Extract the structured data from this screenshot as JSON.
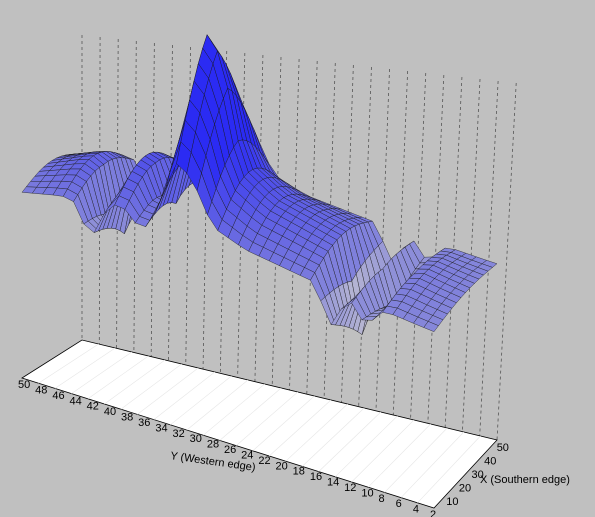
{
  "chart_data": {
    "type": "surface",
    "title": "",
    "xlabel": "X (Southern edge)",
    "ylabel": "Y (Western edge)",
    "zlabel": "",
    "x_ticks": [
      "10",
      "20",
      "30",
      "40",
      "50"
    ],
    "y_ticks": [
      "50",
      "48",
      "46",
      "44",
      "42",
      "40",
      "38",
      "36",
      "34",
      "32",
      "30",
      "28",
      "26",
      "24",
      "22",
      "20",
      "18",
      "16",
      "14",
      "12",
      "10",
      "8",
      "6",
      "4",
      "2"
    ],
    "grid": "vertical dotted drop lines",
    "colormap": [
      "#fffbc8",
      "#8e8fd8",
      "#2b2bf3"
    ],
    "surface_profile": {
      "description_y": [
        50,
        46,
        42,
        38,
        36,
        32,
        28,
        24,
        20,
        16,
        12,
        8,
        4,
        2
      ],
      "ridge_height": [
        0.3,
        0.45,
        0.55,
        0.65,
        0.85,
        1.0,
        0.8,
        0.55,
        0.45,
        0.35,
        0.3,
        0.22,
        0.15,
        0.12
      ],
      "spikes": [
        {
          "y": 42,
          "height": -1.0
        },
        {
          "y": 36,
          "height": -0.8
        },
        {
          "y": 32,
          "height": 1.0
        },
        {
          "y": 30,
          "height": 0.85
        },
        {
          "y": 14,
          "height": -0.95
        },
        {
          "y": 10,
          "height": -0.6
        }
      ]
    }
  }
}
